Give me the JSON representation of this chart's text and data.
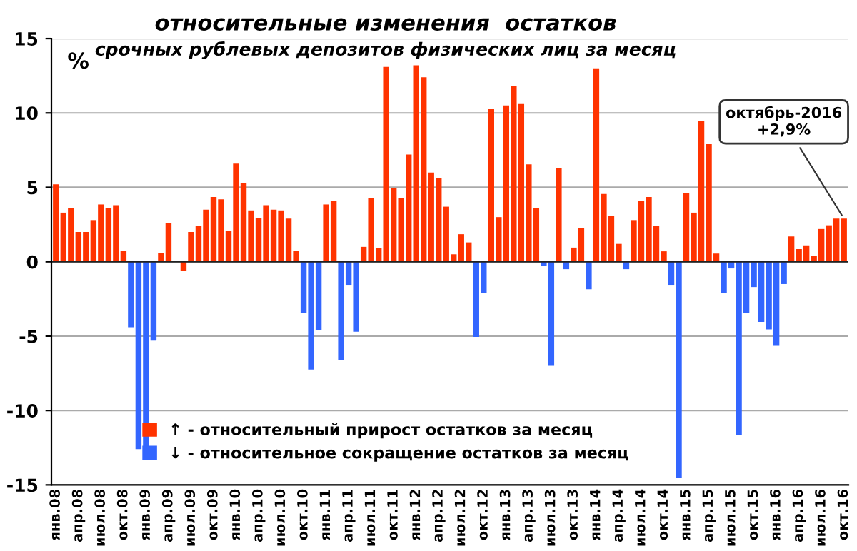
{
  "chart_data": {
    "type": "bar",
    "title": "относительные изменения  остатков",
    "subtitle": "срочных рублевых депозитов физических лиц за месяц",
    "ylabel": "%",
    "categories": [
      "янв.08",
      null,
      null,
      "апр.08",
      null,
      null,
      "июл.08",
      null,
      null,
      "окт.08",
      null,
      null,
      "янв.09",
      null,
      null,
      "апр.09",
      null,
      null,
      "июл.09",
      null,
      null,
      "окт.09",
      null,
      null,
      "янв.10",
      null,
      null,
      "апр.10",
      null,
      null,
      "июл.10",
      null,
      null,
      "окт.10",
      null,
      null,
      "янв.11",
      null,
      null,
      "апр.11",
      null,
      null,
      "июл.11",
      null,
      null,
      "окт.11",
      null,
      null,
      "янв.12",
      null,
      null,
      "апр.12",
      null,
      null,
      "июл.12",
      null,
      null,
      "окт.12",
      null,
      null,
      "янв.13",
      null,
      null,
      "апр.13",
      null,
      null,
      "июл.13",
      null,
      null,
      "окт.13",
      null,
      null,
      "янв.14",
      null,
      null,
      "апр.14",
      null,
      null,
      "июл.14",
      null,
      null,
      "окт.14",
      null,
      null,
      "янв.15",
      null,
      null,
      "апр.15",
      null,
      null,
      "июл.15",
      null,
      null,
      "окт.15",
      null,
      null,
      "янв.16",
      null,
      null,
      "апр.16",
      null,
      null,
      "июл.16",
      null,
      null,
      "окт.16"
    ],
    "stacked": true,
    "series": [
      {
        "name": "↑ - относительный прирост остатков за месяц",
        "color": "#ff3300",
        "values": [
          5.2,
          3.3,
          3.6,
          2.0,
          2.0,
          2.8,
          3.85,
          3.6,
          3.8,
          0.75,
          null,
          null,
          null,
          null,
          0.6,
          2.6,
          0.0,
          -0.6,
          2.0,
          2.4,
          3.5,
          4.35,
          4.2,
          2.05,
          6.6,
          5.3,
          3.45,
          2.95,
          3.8,
          3.5,
          3.45,
          2.9,
          0.75,
          null,
          null,
          null,
          3.85,
          4.1,
          null,
          null,
          null,
          1.0,
          4.3,
          0.9,
          13.1,
          4.95,
          4.3,
          7.2,
          13.2,
          12.4,
          6.0,
          5.6,
          3.7,
          0.5,
          1.85,
          1.3,
          null,
          null,
          10.25,
          3.0,
          10.5,
          11.8,
          10.6,
          6.55,
          3.6,
          null,
          null,
          6.3,
          null,
          0.95,
          2.25,
          null,
          13.0,
          4.55,
          3.1,
          1.2,
          null,
          2.8,
          4.1,
          4.35,
          2.4,
          0.7,
          null,
          null,
          4.6,
          3.3,
          9.45,
          7.9,
          0.55,
          null,
          null,
          null,
          null,
          null,
          null,
          null,
          null,
          null,
          1.7,
          0.85,
          1.1,
          0.4,
          2.2,
          2.45,
          2.9,
          2.9
        ]
      },
      {
        "name": "↓ - относительное сокращение остатков за месяц",
        "color": "#3366ff",
        "values": [
          null,
          null,
          null,
          null,
          null,
          null,
          null,
          null,
          null,
          null,
          -4.4,
          -12.6,
          -12.7,
          -5.3,
          null,
          null,
          null,
          null,
          null,
          null,
          null,
          null,
          null,
          null,
          null,
          null,
          null,
          null,
          null,
          null,
          null,
          null,
          null,
          -3.45,
          -7.25,
          -4.6,
          null,
          null,
          -6.6,
          -1.6,
          -4.7,
          null,
          null,
          null,
          null,
          null,
          null,
          null,
          null,
          null,
          null,
          null,
          null,
          null,
          null,
          null,
          -5.05,
          -2.1,
          null,
          null,
          null,
          null,
          null,
          null,
          null,
          -0.3,
          -7.0,
          null,
          -0.5,
          null,
          null,
          -1.85,
          null,
          null,
          null,
          null,
          -0.5,
          null,
          null,
          null,
          null,
          null,
          -1.6,
          -14.55,
          null,
          null,
          null,
          null,
          null,
          -2.1,
          -0.45,
          -11.65,
          -3.45,
          -1.7,
          -4.05,
          -4.55,
          -5.65,
          -1.5,
          null,
          null,
          null,
          null,
          null,
          null,
          null,
          null
        ]
      }
    ],
    "ylim": [
      -15,
      15
    ],
    "yticks": [
      -15,
      -10,
      -5,
      0,
      5,
      10,
      15
    ],
    "grid": "y",
    "legend": "bottom",
    "annotations": [
      {
        "text": "октябрь-2016\n+2,9%",
        "x": "окт.16",
        "y": 2.9
      }
    ]
  }
}
